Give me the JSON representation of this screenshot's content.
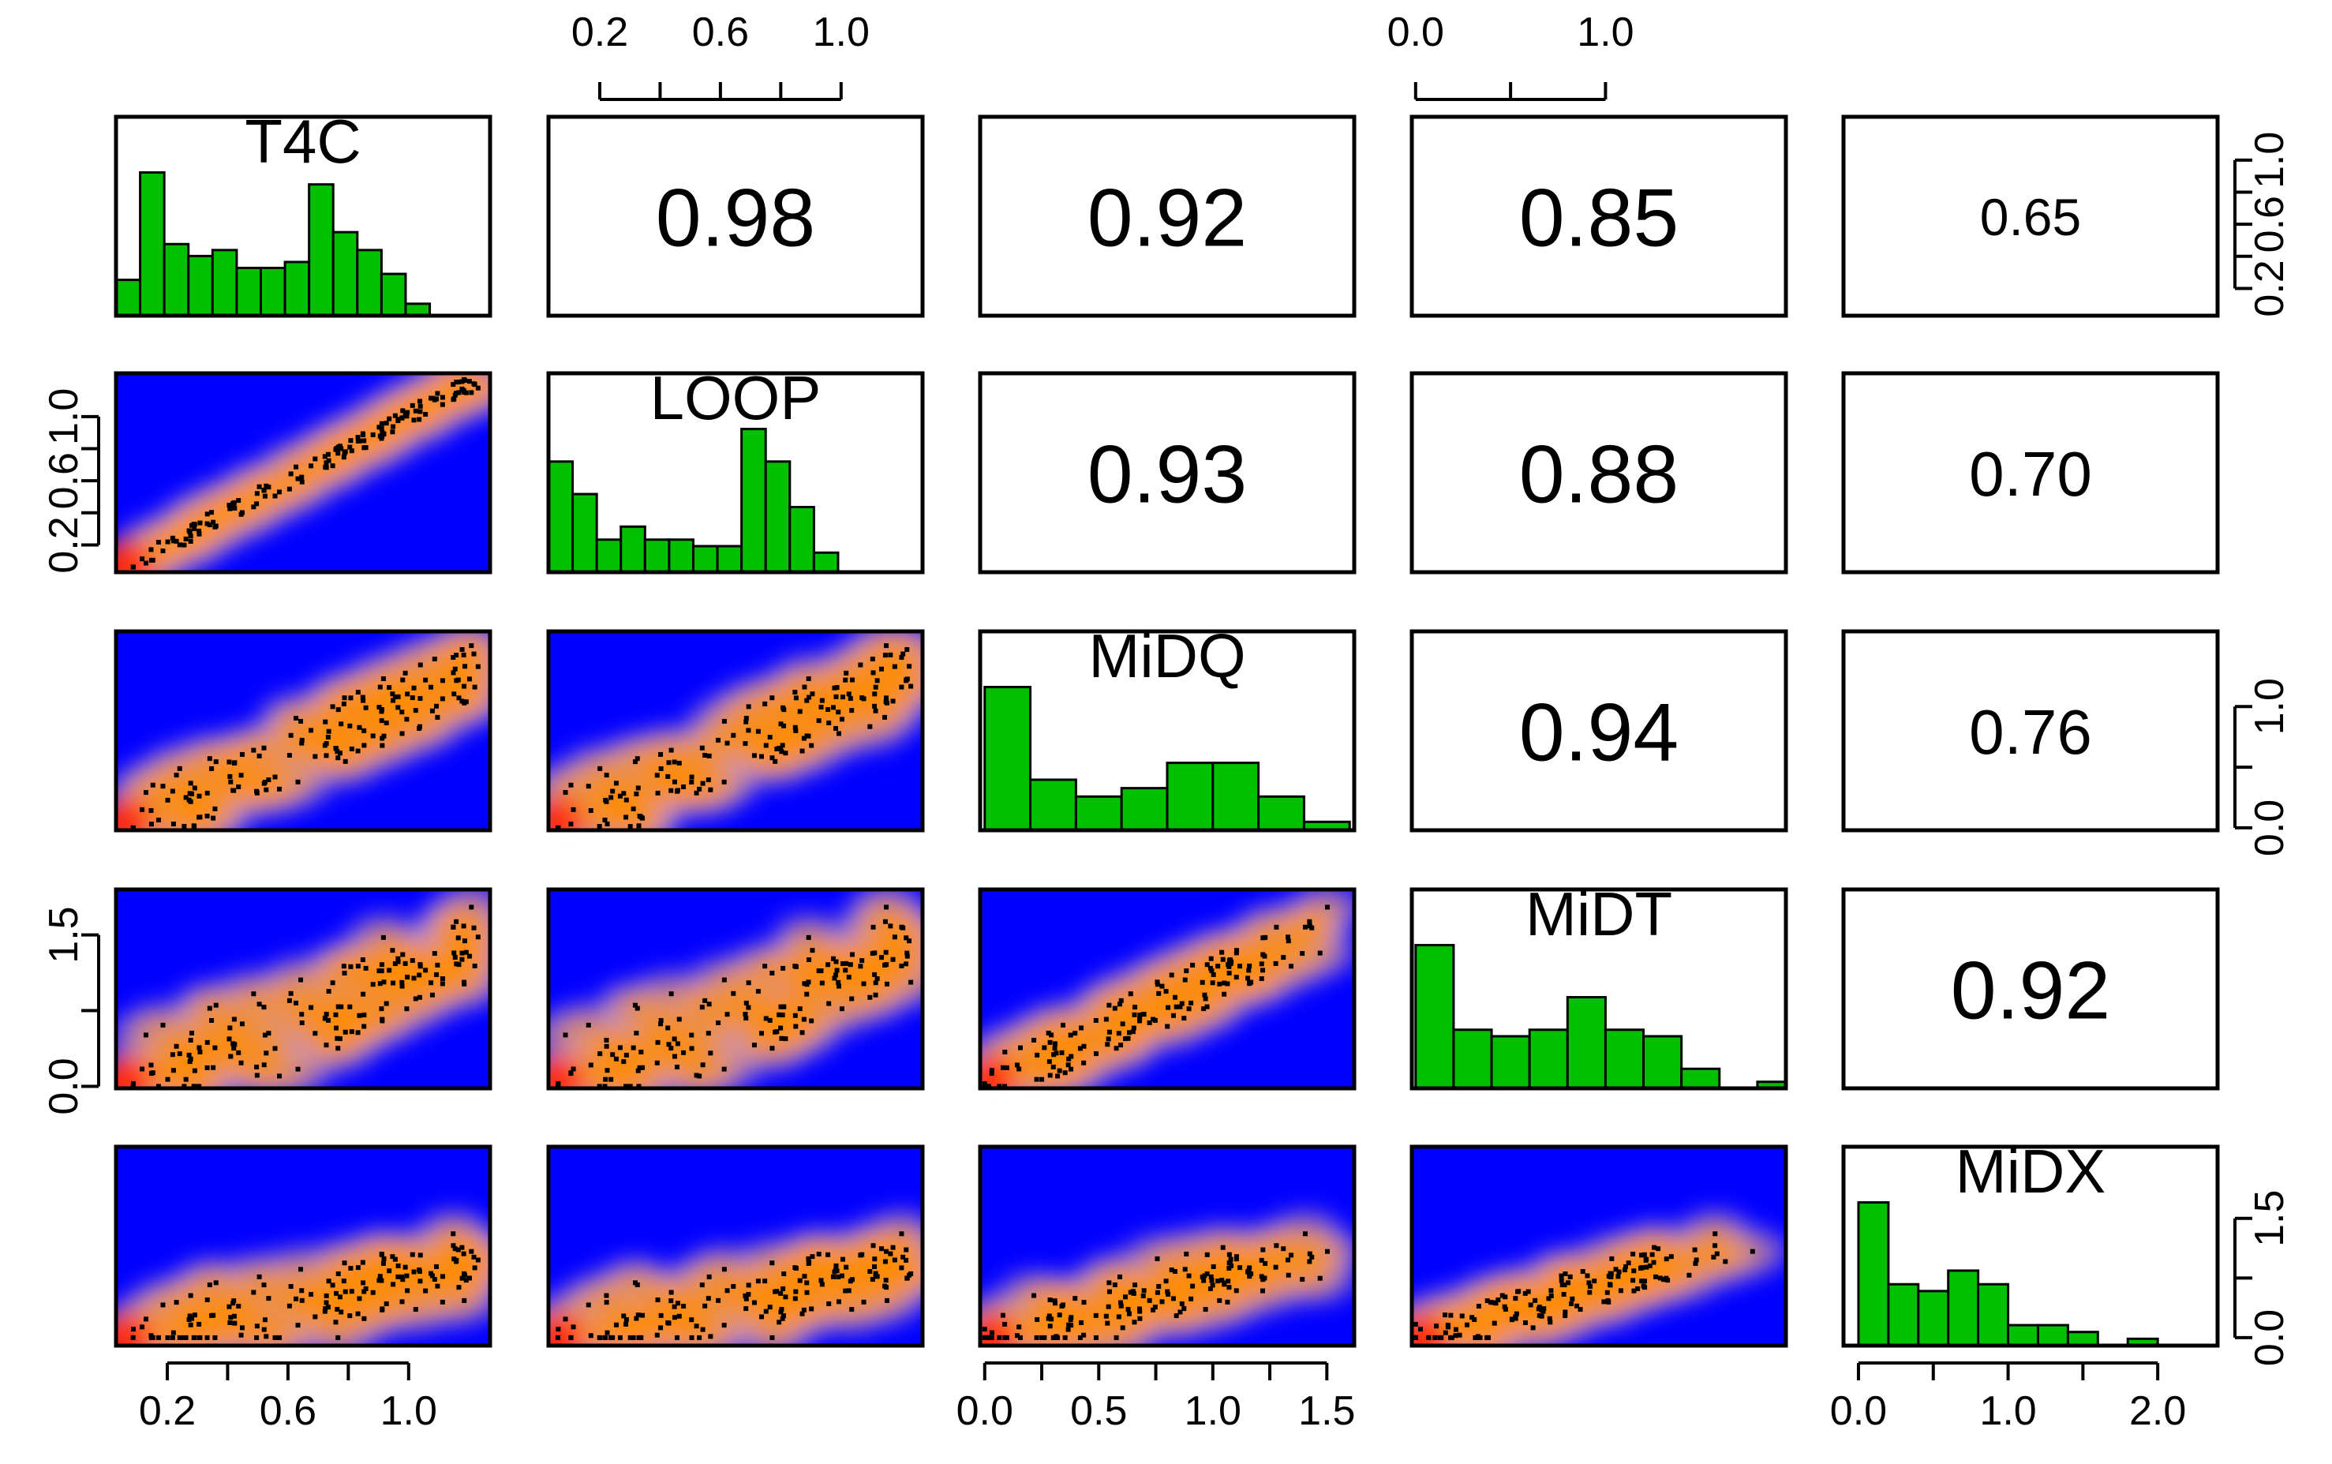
{
  "chart_data": {
    "type": "pairs-matrix",
    "variables": [
      "T4C",
      "LOOP",
      "MiDQ",
      "MiDT",
      "MiDX"
    ],
    "ranges": {
      "T4C": [
        0.03,
        1.27
      ],
      "LOOP": [
        0.03,
        1.27
      ],
      "MiDQ": [
        -0.02,
        1.62
      ],
      "MiDT": [
        -0.02,
        1.95
      ],
      "MiDX": [
        -0.1,
        2.4
      ]
    },
    "correlations": [
      {
        "row": "T4C",
        "col": "LOOP",
        "value": "0.98",
        "size": "large"
      },
      {
        "row": "T4C",
        "col": "MiDQ",
        "value": "0.92",
        "size": "large"
      },
      {
        "row": "T4C",
        "col": "MiDT",
        "value": "0.85",
        "size": "large"
      },
      {
        "row": "T4C",
        "col": "MiDX",
        "value": "0.65",
        "size": "small"
      },
      {
        "row": "LOOP",
        "col": "MiDQ",
        "value": "0.93",
        "size": "large"
      },
      {
        "row": "LOOP",
        "col": "MiDT",
        "value": "0.88",
        "size": "large"
      },
      {
        "row": "LOOP",
        "col": "MiDX",
        "value": "0.70",
        "size": "medium"
      },
      {
        "row": "MiDQ",
        "col": "MiDT",
        "value": "0.94",
        "size": "large"
      },
      {
        "row": "MiDQ",
        "col": "MiDX",
        "value": "0.76",
        "size": "medium"
      },
      {
        "row": "MiDT",
        "col": "MiDX",
        "value": "0.92",
        "size": "large"
      }
    ],
    "histograms": {
      "T4C": {
        "bins": [
          0.03,
          0.11,
          0.19,
          0.27,
          0.35,
          0.43,
          0.51,
          0.59,
          0.67,
          0.75,
          0.83,
          0.91,
          0.99,
          1.07,
          1.15,
          1.23,
          1.27
        ],
        "counts": [
          6,
          24,
          12,
          10,
          11,
          8,
          8,
          9,
          22,
          14,
          11,
          7,
          2,
          0,
          0,
          0
        ]
      },
      "LOOP": {
        "bins": [
          0.03,
          0.11,
          0.19,
          0.27,
          0.35,
          0.43,
          0.51,
          0.59,
          0.67,
          0.75,
          0.83,
          0.91,
          0.99,
          1.07,
          1.15,
          1.23,
          1.27
        ],
        "counts": [
          17,
          12,
          5,
          7,
          5,
          5,
          4,
          4,
          22,
          17,
          10,
          3,
          0,
          0,
          0,
          0
        ]
      },
      "MiDQ": {
        "bins": [
          0.0,
          0.2,
          0.4,
          0.6,
          0.8,
          1.0,
          1.2,
          1.4,
          1.6
        ],
        "counts": [
          17,
          6,
          4,
          5,
          8,
          8,
          4,
          1
        ]
      },
      "MiDT": {
        "bins": [
          0.0,
          0.2,
          0.4,
          0.6,
          0.8,
          1.0,
          1.2,
          1.4,
          1.6,
          1.8,
          2.0
        ],
        "counts": [
          22,
          9,
          8,
          9,
          14,
          9,
          8,
          3,
          0,
          1
        ]
      },
      "MiDX": {
        "bins": [
          0.0,
          0.2,
          0.4,
          0.6,
          0.8,
          1.0,
          1.2,
          1.4,
          1.6,
          1.8,
          2.0,
          2.2,
          2.4
        ],
        "counts": [
          21,
          9,
          8,
          11,
          9,
          3,
          3,
          2,
          0,
          1,
          0,
          0
        ]
      }
    },
    "ticks": {
      "T4C": [
        "0.2",
        "0.6",
        "1.0"
      ],
      "LOOP": [
        "0.2",
        "0.6",
        "1.0"
      ],
      "MiDQ": [
        "0.0",
        "0.5",
        "1.0",
        "1.5"
      ],
      "MiDT": [
        "0.0",
        "1.0"
      ],
      "MiDT_left": [
        "0.0",
        "1.5"
      ],
      "MiDX": [
        "0.0",
        "1.0",
        "2.0"
      ],
      "MiDX_right": [
        "0.0",
        "1.5"
      ],
      "MiDQ_right": [
        "0.0",
        "1.0"
      ]
    },
    "colors": {
      "background": "#0000ff",
      "density_high": "#ff2200",
      "density_mid": "#ff8c00",
      "density_low": "#c896c8",
      "histogram_fill": "#00c000",
      "points": "#000000"
    },
    "grid": false,
    "scatter_style": "smoothScatter density with black points",
    "seed": 17
  }
}
